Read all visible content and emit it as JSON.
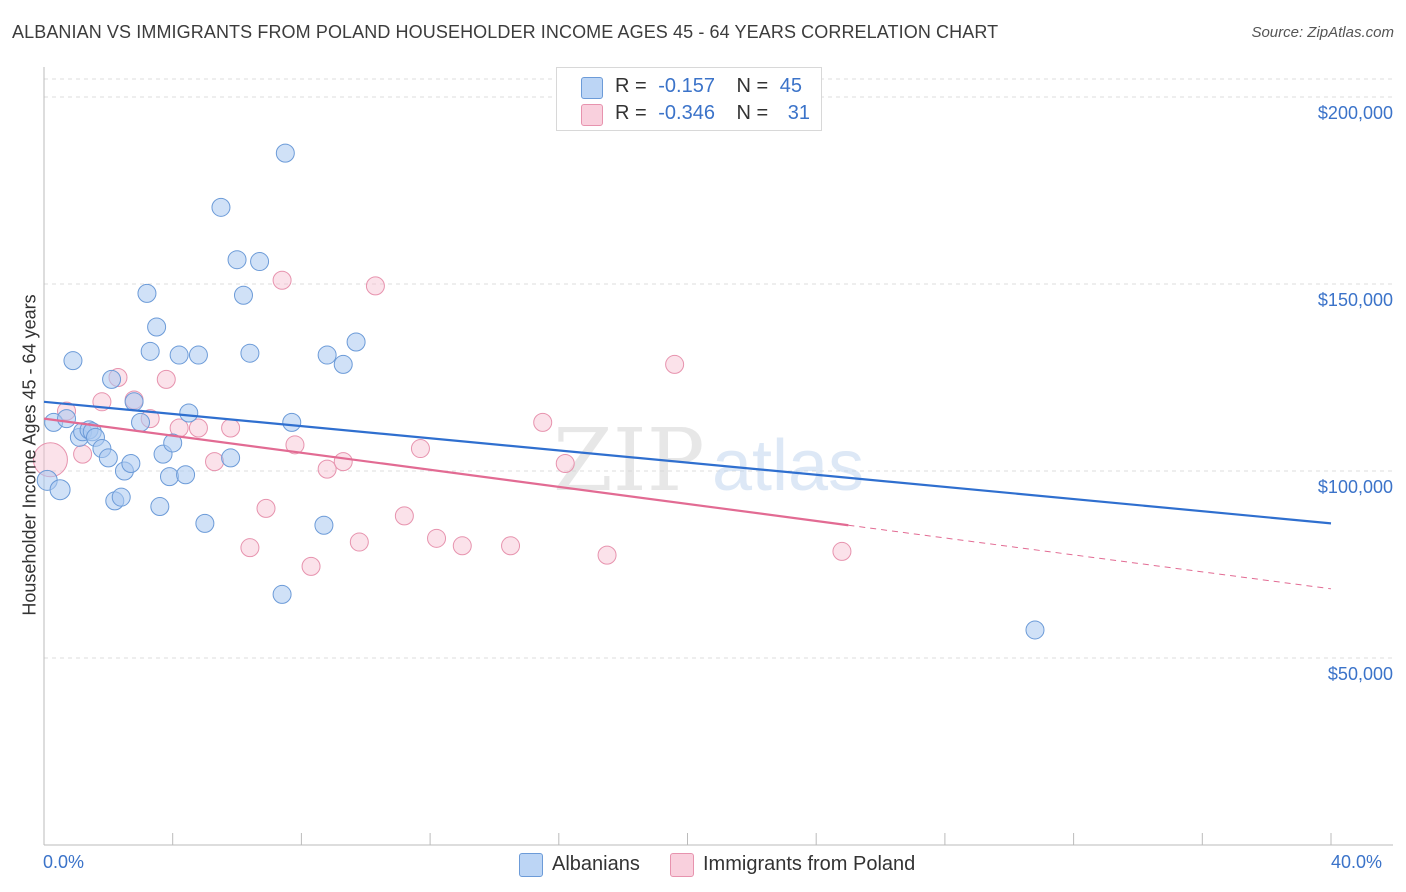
{
  "title": "ALBANIAN VS IMMIGRANTS FROM POLAND HOUSEHOLDER INCOME AGES 45 - 64 YEARS CORRELATION CHART",
  "source": "Source: ZipAtlas.com",
  "watermark": {
    "zip": "ZIP",
    "atlas": "atlas"
  },
  "legend": {
    "r_label": "R =",
    "n_label": "N =",
    "rows": [
      {
        "r": "-0.157",
        "n": "45"
      },
      {
        "r": "-0.346",
        "n": "31"
      }
    ]
  },
  "bottom_legend": [
    "Albanians",
    "Immigrants from Poland"
  ],
  "colors": {
    "albanians_fill": "#a9c8f0",
    "albanians_stroke": "#6c9bd8",
    "albanians_line": "#2f6fcf",
    "poland_fill": "#f6bfd0",
    "poland_stroke": "#e793ae",
    "poland_line": "#e26b93",
    "axis_text": "#3b73c9",
    "grid": "#dddddd"
  },
  "chart_data": {
    "type": "scatter",
    "title": "ALBANIAN VS IMMIGRANTS FROM POLAND HOUSEHOLDER INCOME AGES 45 - 64 YEARS CORRELATION CHART",
    "xlabel": "",
    "ylabel": "Householder Income Ages 45 - 64 years",
    "xlim": [
      0,
      40
    ],
    "ylim": [
      0,
      200000
    ],
    "x_tick_labels": [
      "0.0%",
      "40.0%"
    ],
    "y_ticks": [
      50000,
      100000,
      150000,
      200000
    ],
    "y_tick_labels": [
      "$50,000",
      "$100,000",
      "$150,000",
      "$200,000"
    ],
    "grid": "horizontal dashed",
    "legend_position": "top-center",
    "series": [
      {
        "name": "Albanians",
        "r": -0.157,
        "n": 45,
        "trend": {
          "x": [
            0,
            40
          ],
          "y": [
            118500,
            86000
          ]
        },
        "points": [
          [
            0.1,
            97500,
            10
          ],
          [
            0.5,
            95000,
            10
          ],
          [
            0.3,
            113000,
            9
          ],
          [
            0.7,
            114000,
            9
          ],
          [
            0.9,
            129500,
            9
          ],
          [
            1.1,
            109000,
            9
          ],
          [
            1.2,
            110500,
            9
          ],
          [
            1.4,
            111000,
            9
          ],
          [
            1.5,
            110500,
            9
          ],
          [
            1.6,
            109000,
            9
          ],
          [
            1.8,
            106000,
            9
          ],
          [
            2.0,
            103500,
            9
          ],
          [
            2.1,
            124500,
            9
          ],
          [
            2.2,
            92000,
            9
          ],
          [
            2.4,
            93000,
            9
          ],
          [
            2.5,
            100000,
            9
          ],
          [
            2.7,
            102000,
            9
          ],
          [
            2.8,
            118500,
            9
          ],
          [
            3.0,
            113000,
            9
          ],
          [
            3.2,
            147500,
            9
          ],
          [
            3.3,
            132000,
            9
          ],
          [
            3.5,
            138500,
            9
          ],
          [
            3.6,
            90500,
            9
          ],
          [
            3.7,
            104500,
            9
          ],
          [
            3.9,
            98500,
            9
          ],
          [
            4.0,
            107500,
            9
          ],
          [
            4.2,
            131000,
            9
          ],
          [
            4.4,
            99000,
            9
          ],
          [
            4.5,
            115500,
            9
          ],
          [
            4.8,
            131000,
            9
          ],
          [
            5.0,
            86000,
            9
          ],
          [
            5.5,
            170500,
            9
          ],
          [
            5.8,
            103500,
            9
          ],
          [
            6.0,
            156500,
            9
          ],
          [
            6.2,
            147000,
            9
          ],
          [
            6.4,
            131500,
            9
          ],
          [
            6.7,
            156000,
            9
          ],
          [
            7.4,
            67000,
            9
          ],
          [
            7.5,
            185000,
            9
          ],
          [
            7.7,
            113000,
            9
          ],
          [
            8.7,
            85500,
            9
          ],
          [
            8.8,
            131000,
            9
          ],
          [
            9.3,
            128500,
            9
          ],
          [
            9.7,
            134500,
            9
          ],
          [
            30.8,
            57500,
            9
          ]
        ]
      },
      {
        "name": "Immigrants from Poland",
        "r": -0.346,
        "n": 31,
        "trend": {
          "x": [
            0,
            25
          ],
          "y": [
            114000,
            85500
          ]
        },
        "trend_dashed": {
          "x": [
            25,
            40
          ],
          "y": [
            85500,
            68500
          ]
        },
        "points": [
          [
            0.2,
            103000,
            17
          ],
          [
            0.7,
            116000,
            9
          ],
          [
            1.2,
            104500,
            9
          ],
          [
            1.8,
            118500,
            9
          ],
          [
            2.3,
            125000,
            9
          ],
          [
            2.8,
            119000,
            9
          ],
          [
            3.3,
            114000,
            9
          ],
          [
            3.8,
            124500,
            9
          ],
          [
            4.2,
            111500,
            9
          ],
          [
            4.8,
            111500,
            9
          ],
          [
            5.3,
            102500,
            9
          ],
          [
            5.8,
            111500,
            9
          ],
          [
            6.4,
            79500,
            9
          ],
          [
            6.9,
            90000,
            9
          ],
          [
            7.4,
            151000,
            9
          ],
          [
            7.8,
            107000,
            9
          ],
          [
            8.3,
            74500,
            9
          ],
          [
            8.8,
            100500,
            9
          ],
          [
            9.3,
            102500,
            9
          ],
          [
            9.8,
            81000,
            9
          ],
          [
            10.3,
            149500,
            9
          ],
          [
            11.2,
            88000,
            9
          ],
          [
            11.7,
            106000,
            9
          ],
          [
            12.2,
            82000,
            9
          ],
          [
            13.0,
            80000,
            9
          ],
          [
            14.5,
            80000,
            9
          ],
          [
            15.5,
            113000,
            9
          ],
          [
            16.2,
            102000,
            9
          ],
          [
            17.5,
            77500,
            9
          ],
          [
            19.6,
            128500,
            9
          ],
          [
            24.8,
            78500,
            9
          ]
        ]
      }
    ]
  }
}
